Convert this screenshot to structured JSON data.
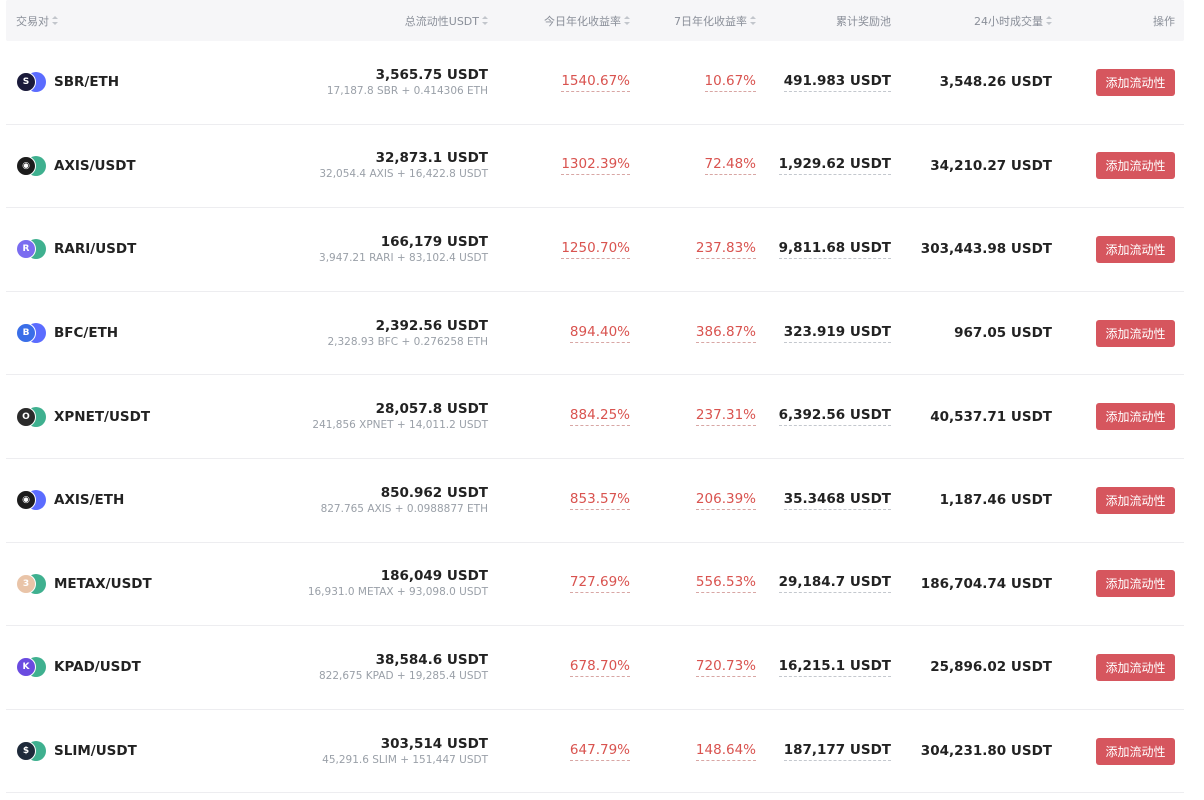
{
  "header": {
    "pair": "交易对",
    "liquidity": "总流动性USDT",
    "today_apr": "今日年化收益率",
    "seven_apr": "7日年化收益率",
    "reward_pool": "累计奖励池",
    "volume_24h": "24小时成交量",
    "action": "操作"
  },
  "colors": {
    "accent": "#d6565e",
    "pct_red": "#d9534f",
    "eth_blue": "#3fb08f"
  },
  "rows": [
    {
      "pair": "SBR/ETH",
      "base_icon": "sbr-icon",
      "quote_icon": "eth-icon",
      "base_color": "#1a1a3a",
      "quote_color": "#5b6cff",
      "base_glyph": "S",
      "liquidity": "3,565.75 USDT",
      "liquidity_detail": "17,187.8 SBR + 0.414306 ETH",
      "today_apr": "1540.67%",
      "seven_apr": "10.67%",
      "reward_pool": "491.983 USDT",
      "volume_24h": "3,548.26 USDT",
      "action": "添加流动性"
    },
    {
      "pair": "AXIS/USDT",
      "base_icon": "axis-icon",
      "quote_icon": "usdt-icon",
      "base_color": "#1c1c1c",
      "quote_color": "#3fb08f",
      "base_glyph": "◉",
      "liquidity": "32,873.1 USDT",
      "liquidity_detail": "32,054.4 AXIS + 16,422.8 USDT",
      "today_apr": "1302.39%",
      "seven_apr": "72.48%",
      "reward_pool": "1,929.62 USDT",
      "volume_24h": "34,210.27 USDT",
      "action": "添加流动性"
    },
    {
      "pair": "RARI/USDT",
      "base_icon": "rari-icon",
      "quote_icon": "usdt-icon",
      "base_color": "#7a6cf0",
      "quote_color": "#3fb08f",
      "base_glyph": "R",
      "liquidity": "166,179 USDT",
      "liquidity_detail": "3,947.21 RARI + 83,102.4 USDT",
      "today_apr": "1250.70%",
      "seven_apr": "237.83%",
      "reward_pool": "9,811.68 USDT",
      "volume_24h": "303,443.98 USDT",
      "action": "添加流动性"
    },
    {
      "pair": "BFC/ETH",
      "base_icon": "bfc-icon",
      "quote_icon": "eth-icon",
      "base_color": "#3a6ee8",
      "quote_color": "#5b6cff",
      "base_glyph": "B",
      "liquidity": "2,392.56 USDT",
      "liquidity_detail": "2,328.93 BFC + 0.276258 ETH",
      "today_apr": "894.40%",
      "seven_apr": "386.87%",
      "reward_pool": "323.919 USDT",
      "volume_24h": "967.05 USDT",
      "action": "添加流动性"
    },
    {
      "pair": "XPNET/USDT",
      "base_icon": "xpnet-icon",
      "quote_icon": "usdt-icon",
      "base_color": "#2b2b2b",
      "quote_color": "#3fb08f",
      "base_glyph": "O",
      "liquidity": "28,057.8 USDT",
      "liquidity_detail": "241,856 XPNET + 14,011.2 USDT",
      "today_apr": "884.25%",
      "seven_apr": "237.31%",
      "reward_pool": "6,392.56 USDT",
      "volume_24h": "40,537.71 USDT",
      "action": "添加流动性"
    },
    {
      "pair": "AXIS/ETH",
      "base_icon": "axis-icon",
      "quote_icon": "eth-icon",
      "base_color": "#1c1c1c",
      "quote_color": "#5b6cff",
      "base_glyph": "◉",
      "liquidity": "850.962 USDT",
      "liquidity_detail": "827.765 AXIS + 0.0988877 ETH",
      "today_apr": "853.57%",
      "seven_apr": "206.39%",
      "reward_pool": "35.3468 USDT",
      "volume_24h": "1,187.46 USDT",
      "action": "添加流动性"
    },
    {
      "pair": "METAX/USDT",
      "base_icon": "metax-icon",
      "quote_icon": "usdt-icon",
      "base_color": "#e9c4a8",
      "quote_color": "#3fb08f",
      "base_glyph": "3",
      "liquidity": "186,049 USDT",
      "liquidity_detail": "16,931.0 METAX + 93,098.0 USDT",
      "today_apr": "727.69%",
      "seven_apr": "556.53%",
      "reward_pool": "29,184.7 USDT",
      "volume_24h": "186,704.74 USDT",
      "action": "添加流动性"
    },
    {
      "pair": "KPAD/USDT",
      "base_icon": "kpad-icon",
      "quote_icon": "usdt-icon",
      "base_color": "#6a4be0",
      "quote_color": "#3fb08f",
      "base_glyph": "K",
      "liquidity": "38,584.6 USDT",
      "liquidity_detail": "822,675 KPAD + 19,285.4 USDT",
      "today_apr": "678.70%",
      "seven_apr": "720.73%",
      "reward_pool": "16,215.1 USDT",
      "volume_24h": "25,896.02 USDT",
      "action": "添加流动性"
    },
    {
      "pair": "SLIM/USDT",
      "base_icon": "slim-icon",
      "quote_icon": "usdt-icon",
      "base_color": "#1e2a3a",
      "quote_color": "#3fb08f",
      "base_glyph": "$",
      "liquidity": "303,514 USDT",
      "liquidity_detail": "45,291.6 SLIM + 151,447 USDT",
      "today_apr": "647.79%",
      "seven_apr": "148.64%",
      "reward_pool": "187,177 USDT",
      "volume_24h": "304,231.80 USDT",
      "action": "添加流动性"
    }
  ]
}
